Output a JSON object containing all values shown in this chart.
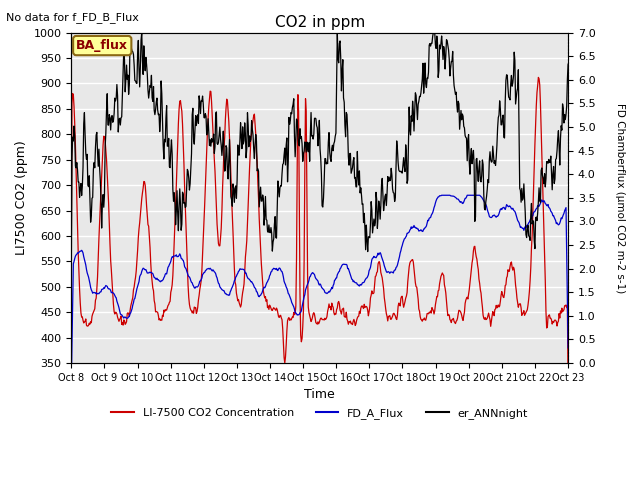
{
  "title": "CO2 in ppm",
  "subtitle": "No data for f_FD_B_Flux",
  "annotation": "BA_flux",
  "ylabel_left": "LI7500 CO2 (ppm)",
  "ylabel_right": "FD Chamberflux (μmol CO2 m-2 s-1)",
  "xlabel": "Time",
  "ylim_left": [
    350,
    1000
  ],
  "ylim_right": [
    0.0,
    7.0
  ],
  "xtick_labels": [
    "Oct 8",
    "Oct 9",
    "Oct 10",
    "Oct 11",
    "Oct 12",
    "Oct 13",
    "Oct 14",
    "Oct 15",
    "Oct 16",
    "Oct 17",
    "Oct 18",
    "Oct 19",
    "Oct 20",
    "Oct 21",
    "Oct 22",
    "Oct 23"
  ],
  "color_red": "#CC0000",
  "color_blue": "#0000CC",
  "color_black": "#000000",
  "legend_labels": [
    "LI-7500 CO2 Concentration",
    "FD_A_Flux",
    "er_ANNnight"
  ],
  "background_color": "#E8E8E8",
  "grid_color": "#FFFFFF",
  "annotation_bg": "#FFFF99",
  "annotation_border": "#8B6914"
}
